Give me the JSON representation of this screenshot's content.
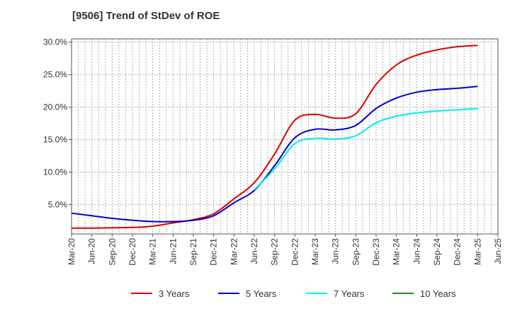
{
  "chart_data": {
    "type": "line",
    "title": "[9506]  Trend of StDev of ROE",
    "xlabel": "",
    "ylabel": "",
    "x_ticks": [
      "Mar-20",
      "Jun-20",
      "Sep-20",
      "Dec-20",
      "Mar-21",
      "Jun-21",
      "Sep-21",
      "Dec-21",
      "Mar-22",
      "Jun-22",
      "Sep-22",
      "Dec-22",
      "Mar-23",
      "Jun-23",
      "Sep-23",
      "Dec-23",
      "Mar-24",
      "Jun-24",
      "Sep-24",
      "Dec-24",
      "Mar-25",
      "Jun-25"
    ],
    "y_ticks": [
      "5.0%",
      "10.0%",
      "15.0%",
      "20.0%",
      "25.0%",
      "30.0%"
    ],
    "y_tick_values": [
      5,
      10,
      15,
      20,
      25,
      30
    ],
    "ylim": [
      0.5,
      30.5
    ],
    "grid": true,
    "legend_position": "bottom",
    "x": [
      "Mar-20",
      "Jun-20",
      "Sep-20",
      "Dec-20",
      "Mar-21",
      "Jun-21",
      "Sep-21",
      "Dec-21",
      "Mar-22",
      "Jun-22",
      "Sep-22",
      "Dec-22",
      "Mar-23",
      "Jun-23",
      "Sep-23",
      "Dec-23",
      "Mar-24",
      "Jun-24",
      "Sep-24",
      "Dec-24",
      "Mar-25"
    ],
    "series": [
      {
        "name": "3 Years",
        "color": "#dd0000",
        "values": [
          1.4,
          1.4,
          1.45,
          1.5,
          1.7,
          2.2,
          2.7,
          3.6,
          5.9,
          8.4,
          12.8,
          18.0,
          18.9,
          18.3,
          19.0,
          23.5,
          26.5,
          28.0,
          28.8,
          29.3,
          29.5
        ]
      },
      {
        "name": "5 Years",
        "color": "#0000cc",
        "values": [
          3.7,
          3.3,
          2.9,
          2.6,
          2.4,
          2.4,
          2.6,
          3.3,
          5.3,
          7.2,
          11.0,
          15.3,
          16.6,
          16.5,
          17.2,
          19.8,
          21.4,
          22.3,
          22.7,
          22.9,
          23.2
        ]
      },
      {
        "name": "7 Years",
        "color": "#00eeee",
        "values": [
          null,
          null,
          null,
          null,
          null,
          null,
          null,
          null,
          null,
          7.3,
          10.5,
          14.4,
          15.2,
          15.1,
          15.6,
          17.6,
          18.6,
          19.1,
          19.4,
          19.6,
          19.8
        ]
      },
      {
        "name": "10 Years",
        "color": "#228822",
        "values": [
          null,
          null,
          null,
          null,
          null,
          null,
          null,
          null,
          null,
          null,
          null,
          null,
          null,
          null,
          null,
          null,
          null,
          null,
          null,
          null,
          null
        ]
      }
    ]
  }
}
